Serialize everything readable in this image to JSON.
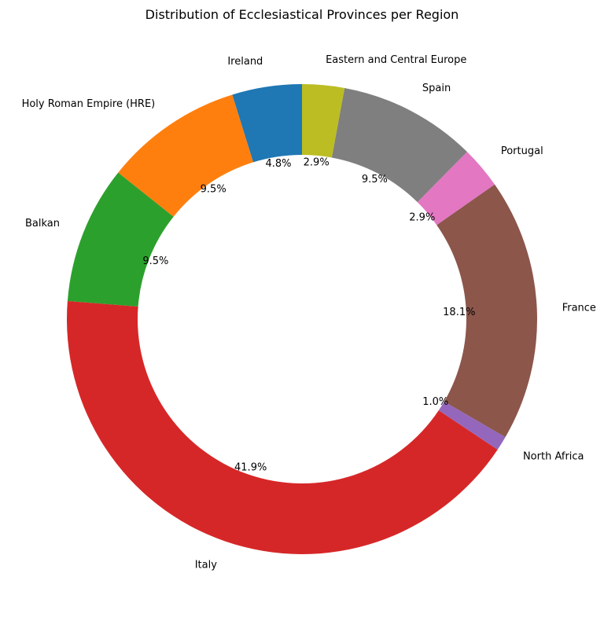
{
  "chart_data": {
    "type": "pie",
    "donut": true,
    "title": "Distribution of Ecclesiastical Provinces per Region",
    "start_angle_deg": 90,
    "direction": "counterclockwise",
    "slices": [
      {
        "label": "Ireland",
        "value": 4.8,
        "pct_label": "4.8%",
        "color": "#1f77b4"
      },
      {
        "label": "Holy Roman Empire (HRE)",
        "value": 9.5,
        "pct_label": "9.5%",
        "color": "#ff7f0e"
      },
      {
        "label": "Balkan",
        "value": 9.5,
        "pct_label": "9.5%",
        "color": "#2ca02c"
      },
      {
        "label": "Italy",
        "value": 41.9,
        "pct_label": "41.9%",
        "color": "#d62728"
      },
      {
        "label": "North Africa",
        "value": 1.0,
        "pct_label": "1.0%",
        "color": "#9467bd"
      },
      {
        "label": "France",
        "value": 18.1,
        "pct_label": "18.1%",
        "color": "#8c564b"
      },
      {
        "label": "Portugal",
        "value": 2.9,
        "pct_label": "2.9%",
        "color": "#e377c2"
      },
      {
        "label": "Spain",
        "value": 9.5,
        "pct_label": "9.5%",
        "color": "#7f7f7f"
      },
      {
        "label": "Eastern and Central Europe",
        "value": 2.9,
        "pct_label": "2.9%",
        "color": "#bcbd22"
      }
    ]
  }
}
